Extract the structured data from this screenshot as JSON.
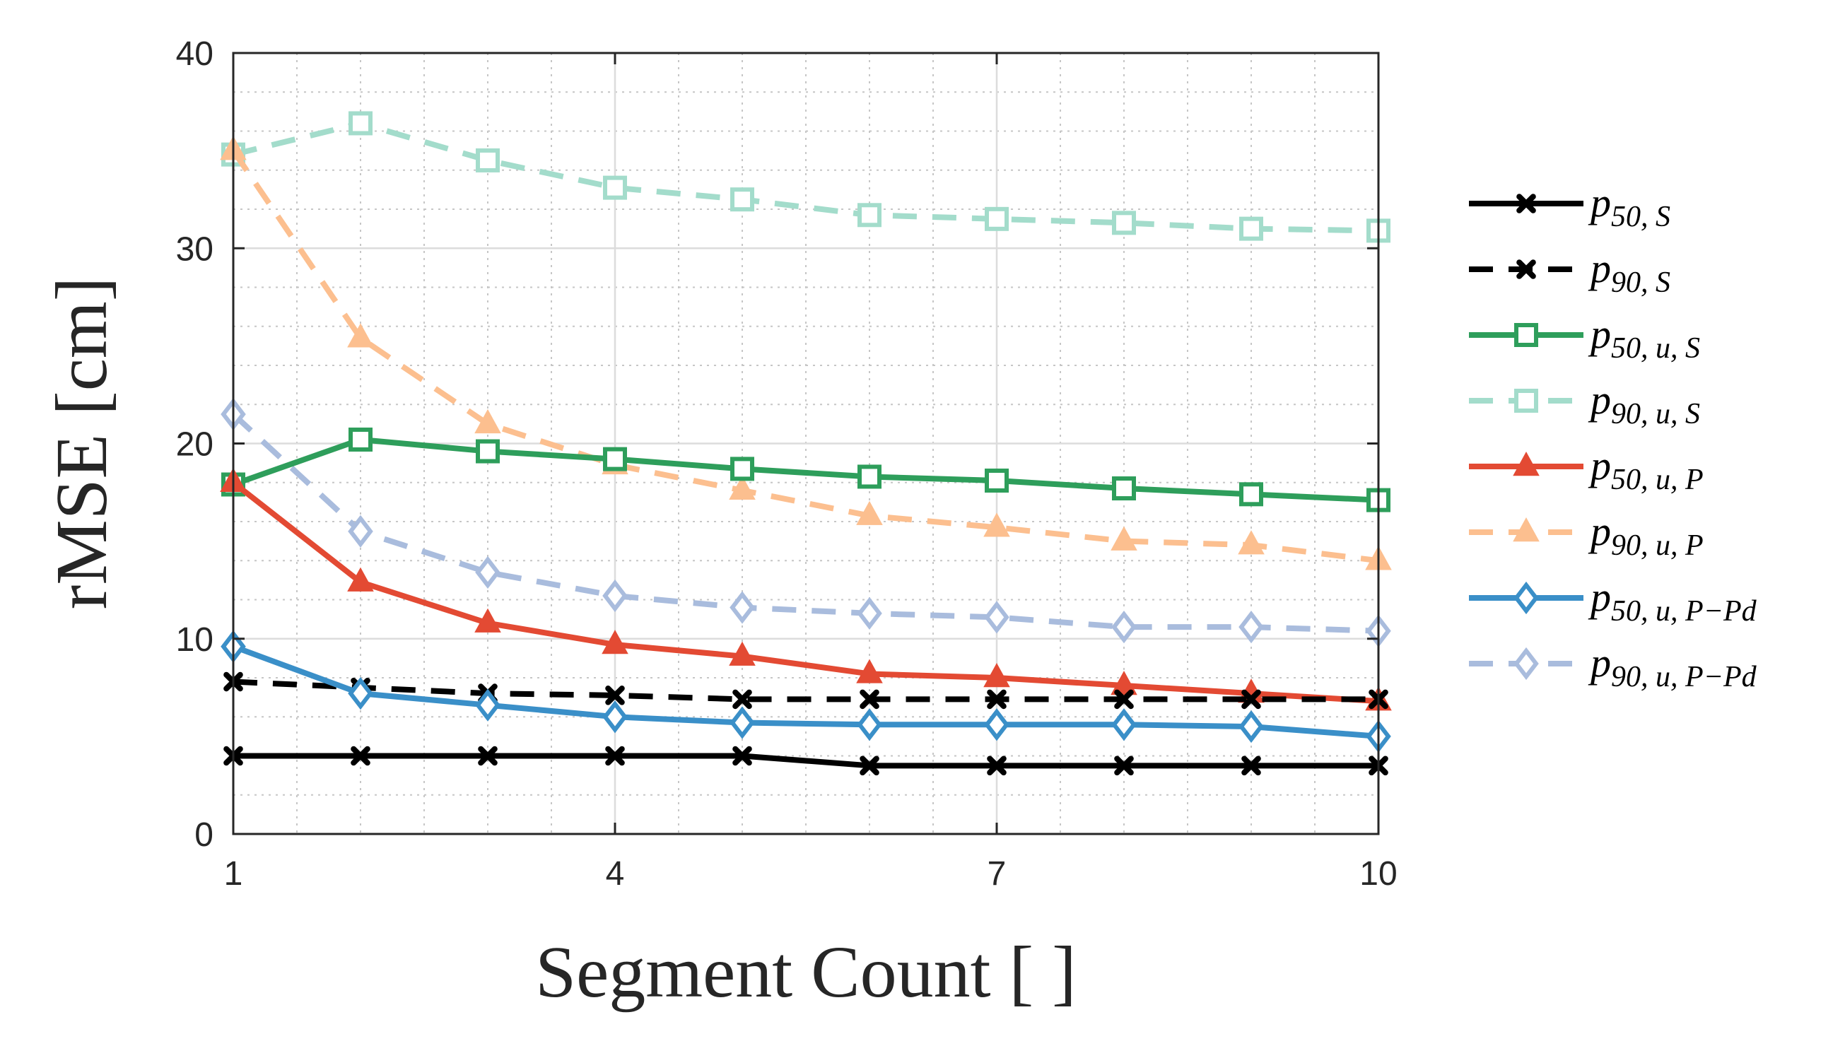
{
  "chart_data": {
    "type": "line",
    "xlabel": "Segment Count [ ]",
    "ylabel": "rMSE [cm]",
    "xlim": [
      1,
      10
    ],
    "ylim": [
      0,
      40
    ],
    "xticks": [
      1,
      4,
      7,
      10
    ],
    "yticks": [
      0,
      10,
      20,
      30,
      40
    ],
    "grid": true,
    "minor_grid": true,
    "legend_position": "right-outside",
    "x": [
      1,
      2,
      3,
      4,
      5,
      6,
      7,
      8,
      9,
      10
    ],
    "series": [
      {
        "name": "p",
        "sub": "50, S",
        "color": "#000000",
        "dash": "solid",
        "marker": "x",
        "values": [
          4.0,
          4.0,
          4.0,
          4.0,
          4.0,
          3.5,
          3.5,
          3.5,
          3.5,
          3.5
        ]
      },
      {
        "name": "p",
        "sub": "90, S",
        "color": "#000000",
        "dash": "dashed",
        "marker": "x",
        "values": [
          7.8,
          7.5,
          7.2,
          7.1,
          6.9,
          6.9,
          6.9,
          6.9,
          6.9,
          6.9
        ]
      },
      {
        "name": "p",
        "sub": "50, u, S",
        "color": "#2e9e5b",
        "dash": "solid",
        "marker": "square",
        "values": [
          17.9,
          20.2,
          19.6,
          19.2,
          18.7,
          18.3,
          18.1,
          17.7,
          17.4,
          17.1
        ]
      },
      {
        "name": "p",
        "sub": "90, u, S",
        "color": "#a3dccb",
        "dash": "dashed",
        "marker": "square",
        "values": [
          34.8,
          36.4,
          34.5,
          33.1,
          32.5,
          31.7,
          31.5,
          31.3,
          31.0,
          30.9
        ]
      },
      {
        "name": "p",
        "sub": "50, u, P",
        "color": "#e34a33",
        "dash": "solid",
        "marker": "triangle",
        "values": [
          18.0,
          12.9,
          10.8,
          9.7,
          9.1,
          8.2,
          8.0,
          7.6,
          7.2,
          6.8
        ]
      },
      {
        "name": "p",
        "sub": "90, u, P",
        "color": "#fcbf8f",
        "dash": "dashed",
        "marker": "triangle",
        "values": [
          35.0,
          25.4,
          21.0,
          18.9,
          17.6,
          16.3,
          15.7,
          15.0,
          14.8,
          14.0
        ]
      },
      {
        "name": "p",
        "sub": "50, u, P−Pd",
        "color": "#3a8fc8",
        "dash": "solid",
        "marker": "diamond",
        "values": [
          9.6,
          7.2,
          6.6,
          6.0,
          5.7,
          5.6,
          5.6,
          5.6,
          5.5,
          5.0
        ]
      },
      {
        "name": "p",
        "sub": "90, u, P−Pd",
        "color": "#a9bcdd",
        "dash": "dashed",
        "marker": "diamond",
        "values": [
          21.5,
          15.5,
          13.4,
          12.2,
          11.6,
          11.3,
          11.1,
          10.6,
          10.6,
          10.4
        ]
      }
    ]
  }
}
